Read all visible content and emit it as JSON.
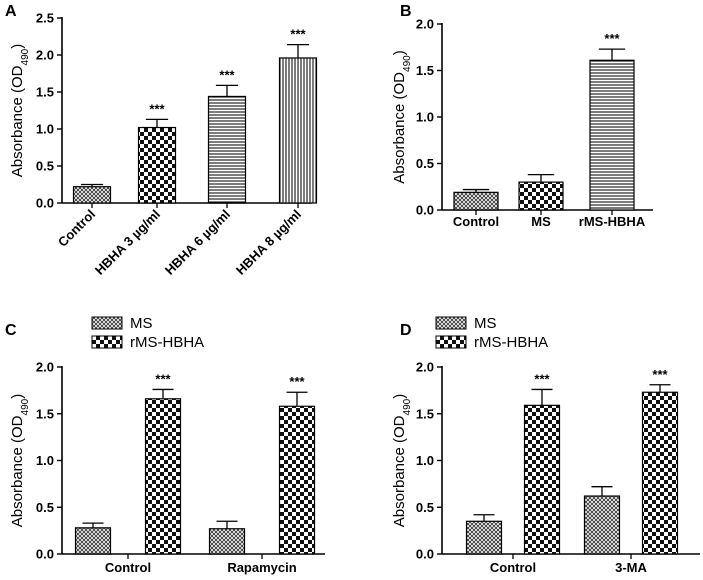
{
  "chart_data": [
    {
      "panel": "A",
      "type": "bar",
      "ylabel": "Absorbance (OD490)",
      "ylim": [
        0,
        2.5
      ],
      "yticks": [
        "0.0",
        "0.5",
        "1.0",
        "1.5",
        "2.0",
        "2.5"
      ],
      "categories": [
        "Control",
        "HBHA 3 µg/ml",
        "HBHA 6 µg/ml",
        "HBHA 8 µg/ml"
      ],
      "values": [
        0.22,
        1.02,
        1.44,
        1.96
      ],
      "errors": [
        0.03,
        0.11,
        0.15,
        0.18
      ],
      "patterns": [
        "cross",
        "check",
        "hstripe",
        "vstripe"
      ],
      "significance": [
        "",
        "***",
        "***",
        "***"
      ]
    },
    {
      "panel": "B",
      "type": "bar",
      "ylabel": "Absorbance (OD490)",
      "ylim": [
        0,
        2.0
      ],
      "yticks": [
        "0.0",
        "0.5",
        "1.0",
        "1.5",
        "2.0"
      ],
      "categories": [
        "Control",
        "MS",
        "rMS-HBHA"
      ],
      "values": [
        0.19,
        0.3,
        1.61
      ],
      "errors": [
        0.03,
        0.08,
        0.12
      ],
      "patterns": [
        "cross",
        "check",
        "hstripe"
      ],
      "significance": [
        "",
        "",
        "***"
      ]
    },
    {
      "panel": "C",
      "type": "bar",
      "ylabel": "Absorbance (OD490)",
      "ylim": [
        0,
        2.0
      ],
      "yticks": [
        "0.0",
        "0.5",
        "1.0",
        "1.5",
        "2.0"
      ],
      "categories": [
        "Control",
        "Rapamycin"
      ],
      "series": [
        {
          "name": "MS",
          "pattern": "cross",
          "values": [
            0.28,
            0.27
          ],
          "errors": [
            0.05,
            0.08
          ],
          "significance": [
            "",
            ""
          ]
        },
        {
          "name": "rMS-HBHA",
          "pattern": "check",
          "values": [
            1.66,
            1.58
          ],
          "errors": [
            0.1,
            0.15
          ],
          "significance": [
            "***",
            "***"
          ]
        }
      ]
    },
    {
      "panel": "D",
      "type": "bar",
      "ylabel": "Absorbance (OD490)",
      "ylim": [
        0,
        2.0
      ],
      "yticks": [
        "0.0",
        "0.5",
        "1.0",
        "1.5",
        "2.0"
      ],
      "categories": [
        "Control",
        "3-MA"
      ],
      "series": [
        {
          "name": "MS",
          "pattern": "cross",
          "values": [
            0.35,
            0.62
          ],
          "errors": [
            0.07,
            0.1
          ],
          "significance": [
            "",
            ""
          ]
        },
        {
          "name": "rMS-HBHA",
          "pattern": "check",
          "values": [
            1.59,
            1.73
          ],
          "errors": [
            0.17,
            0.08
          ],
          "significance": [
            "***",
            "***"
          ]
        }
      ]
    }
  ]
}
